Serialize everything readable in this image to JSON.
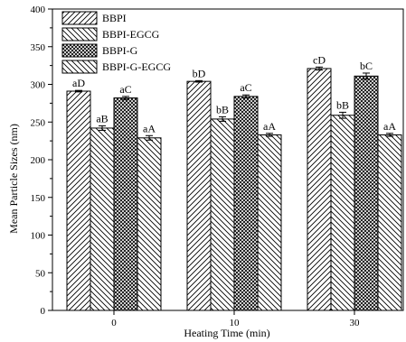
{
  "chart_data": {
    "type": "bar",
    "xlabel": "Heating Time (min)",
    "ylabel": "Mean Particle Sizes (nm)",
    "categories": [
      "0",
      "10",
      "30"
    ],
    "ylim": [
      0,
      400
    ],
    "yticks": [
      0,
      50,
      100,
      150,
      200,
      250,
      300,
      350,
      400
    ],
    "legend_position": "top-left",
    "grid": false,
    "series": [
      {
        "name": "BBPI",
        "pattern": "diag-fwd",
        "values": [
          291,
          304,
          321
        ],
        "errors": [
          1,
          1,
          2
        ],
        "labels": [
          "aD",
          "bD",
          "cD"
        ]
      },
      {
        "name": "BBPI-EGCG",
        "pattern": "diag-back",
        "values": [
          242,
          254,
          259
        ],
        "errors": [
          3,
          3,
          4
        ],
        "labels": [
          "aB",
          "bB",
          "bB"
        ]
      },
      {
        "name": "BBPI-G",
        "pattern": "crosshatch",
        "values": [
          282,
          284,
          311
        ],
        "errors": [
          2,
          2,
          4
        ],
        "labels": [
          "aC",
          "aC",
          "bC"
        ]
      },
      {
        "name": "BBPI-G-EGCG",
        "pattern": "diag-back",
        "values": [
          229,
          233,
          233
        ],
        "errors": [
          3,
          2,
          2
        ],
        "labels": [
          "aA",
          "aA",
          "aA"
        ]
      }
    ]
  }
}
